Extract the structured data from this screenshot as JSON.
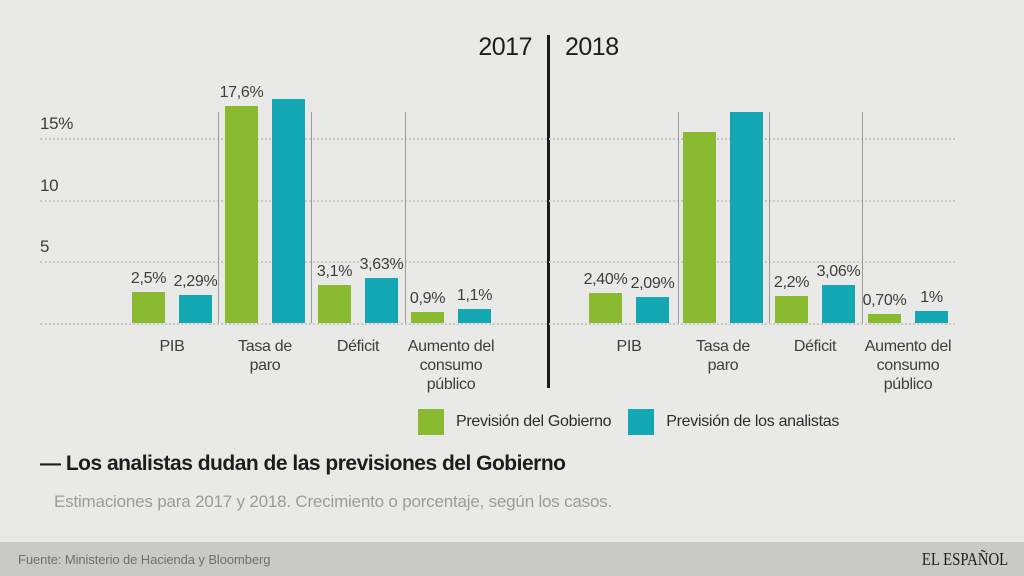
{
  "header": {
    "year_left": "2017",
    "year_right": "2018"
  },
  "title": {
    "text": "— Los analistas dudan de las previsiones del Gobierno"
  },
  "subtitle": {
    "text": "Estimaciones para 2017 y 2018. Crecimiento o porcentaje, según los casos."
  },
  "footer": {
    "source": "Fuente: Ministerio de Hacienda y Bloomberg",
    "brand": "EL ESPAÑOL"
  },
  "chart_data": {
    "type": "grouped-bar",
    "note": "Two side-by-side panels (2017 and 2018); values are percentages; unlabeled bars estimated from pixel heights",
    "ylim": [
      0,
      18.5
    ],
    "grid": "horizontal-dashed",
    "legend_position": "bottom-center",
    "y_ticks": [
      {
        "value": 15,
        "label": "15%"
      },
      {
        "value": 10,
        "label": "10"
      },
      {
        "value": 5,
        "label": "5"
      }
    ],
    "series": [
      {
        "key": "gobierno",
        "name": "Previsión del Gobierno",
        "color": "#8aba2f"
      },
      {
        "key": "analistas",
        "name": "Previsión de los analistas",
        "color": "#13a8b4"
      }
    ],
    "panels": [
      {
        "year": "2017",
        "categories": [
          "PIB",
          "Tasa de\nparo",
          "Déficit",
          "Aumento del\nconsumo\npúblico"
        ],
        "values": {
          "gobierno": [
            2.5,
            17.6,
            3.1,
            0.9
          ],
          "analistas": [
            2.29,
            18.2,
            3.63,
            1.1
          ]
        },
        "bar_labels": {
          "gobierno": [
            "2,5%",
            "17,6%",
            "3,1%",
            "0,9%"
          ],
          "analistas": [
            "2,29%",
            "",
            "3,63%",
            "1,1%"
          ]
        }
      },
      {
        "year": "2018",
        "categories": [
          "PIB",
          "Tasa de\nparo",
          "Déficit",
          "Aumento del\nconsumo\npúblico"
        ],
        "values": {
          "gobierno": [
            2.4,
            15.5,
            2.2,
            0.7
          ],
          "analistas": [
            2.09,
            17.1,
            3.06,
            1.0
          ]
        },
        "bar_labels": {
          "gobierno": [
            "2,40%",
            "",
            "2,2%",
            "0,70%"
          ],
          "analistas": [
            "2,09%",
            "",
            "3,06%",
            "1%"
          ]
        }
      }
    ]
  }
}
